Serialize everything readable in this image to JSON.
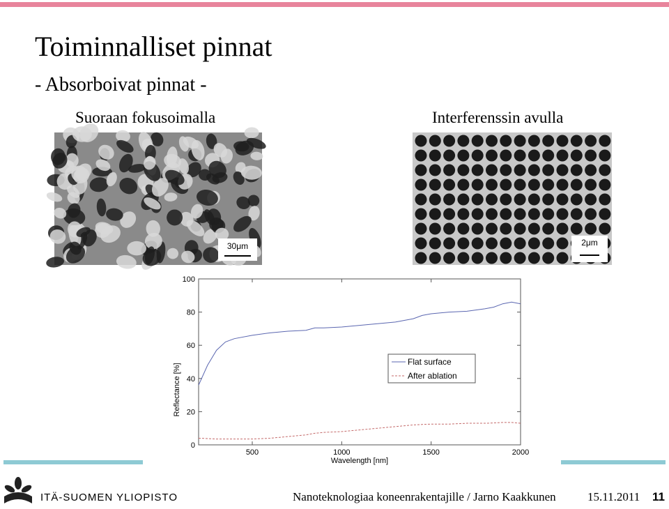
{
  "header": {
    "title": "Toiminnalliset pinnat",
    "subtitle": "- Absorboivat pinnat -"
  },
  "images": [
    {
      "heading": "Suoraan fokusoimalla",
      "scale": "30μm"
    },
    {
      "heading": "Interferenssin avulla",
      "scale": "2μm"
    }
  ],
  "chart_data": {
    "type": "line",
    "xlabel": "Wavelength [nm]",
    "ylabel": "Reflectance [%]",
    "x": [
      200,
      250,
      300,
      350,
      400,
      500,
      600,
      700,
      800,
      850,
      900,
      1000,
      1100,
      1200,
      1300,
      1400,
      1450,
      1500,
      1600,
      1700,
      1800,
      1850,
      1900,
      1950,
      2000
    ],
    "series": [
      {
        "name": "Flat surface",
        "color": "#5a66b0",
        "dash": false,
        "values": [
          36,
          48,
          57,
          62,
          64,
          66,
          67.5,
          68.5,
          69,
          70.5,
          70.5,
          71,
          72,
          73,
          74,
          76,
          78,
          79,
          80,
          80.5,
          82,
          83,
          85,
          86,
          85
        ]
      },
      {
        "name": "After ablation",
        "color": "#c46a6a",
        "dash": true,
        "values": [
          4,
          3.8,
          3.5,
          3.5,
          3.5,
          3.5,
          4,
          5,
          6,
          7,
          7.5,
          8,
          9,
          10,
          11,
          12,
          12.3,
          12.5,
          12.5,
          13,
          13,
          13.2,
          13.5,
          13.5,
          13
        ]
      }
    ],
    "xlim": [
      200,
      2000
    ],
    "ylim": [
      0,
      100
    ],
    "xticks": [
      500,
      1000,
      1500,
      2000
    ],
    "yticks": [
      0,
      20,
      40,
      60,
      80,
      100
    ],
    "grid": false,
    "legend": "center-right"
  },
  "footer": {
    "logo": "ITÄ-SUOMEN YLIOPISTO",
    "text": "Nanoteknologiaa koneenrakentajille / Jarno Kaakkunen",
    "date": "15.11.2011",
    "page": "11"
  }
}
